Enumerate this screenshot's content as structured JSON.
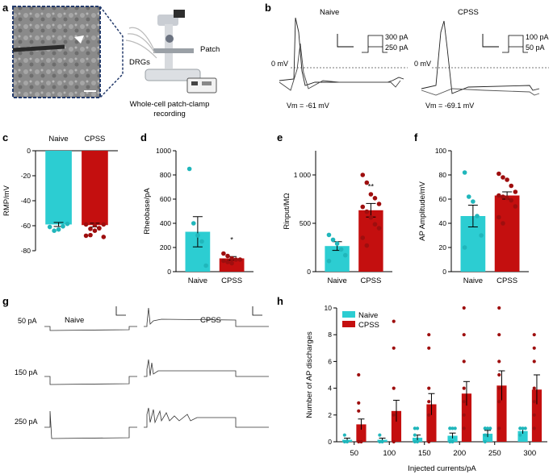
{
  "colors": {
    "naive": "#2ccdd2",
    "cpss": "#c40f0f",
    "naive_dot": "#20b6bb",
    "cpss_dot": "#9e0e0e",
    "frame": "#233a6b"
  },
  "panel_labels": {
    "a": "a",
    "b": "b",
    "c": "c",
    "d": "d",
    "e": "e",
    "f": "f",
    "g": "g",
    "h": "h"
  },
  "panel_a": {
    "drgs": "DRGs",
    "patch": "Patch",
    "caption_line1": "Whole-cell patch-clamp",
    "caption_line2": "recording"
  },
  "panel_b": {
    "naive": {
      "title": "Naive",
      "zero": "0 mV",
      "vm": "Vm = -61 mV",
      "step_hi": "300 pA",
      "step_lo": "250 pA"
    },
    "cpss": {
      "title": "CPSS",
      "zero": "0 mV",
      "vm": "Vm = -69.1 mV",
      "step_hi": "100 pA",
      "step_lo": "50 pA"
    }
  },
  "panel_g": {
    "naive": "Naive",
    "cpss": "CPSS",
    "rows": [
      {
        "label": "50 pA"
      },
      {
        "label": "150 pA"
      },
      {
        "label": "250 pA"
      }
    ]
  },
  "chart_data": [
    {
      "id": "c",
      "type": "bar",
      "ylabel": "RMP/mV",
      "categories": [
        "Naive",
        "CPSS"
      ],
      "values": [
        -59,
        -59.5
      ],
      "errors": [
        1.6,
        1.5
      ],
      "ylim": [
        -80,
        0
      ],
      "yticks": [
        0,
        -20,
        -40,
        -60,
        -80
      ],
      "ytick_labels": [
        "0",
        "-20",
        "-40",
        "-60",
        "-80"
      ],
      "points": [
        [
          -61,
          -64,
          -63,
          -60.5,
          -58.5
        ],
        [
          -59,
          -62.5,
          -59.5,
          -62,
          -69,
          -68,
          -67.5,
          -64,
          -62,
          -59
        ]
      ],
      "sig": ""
    },
    {
      "id": "d",
      "type": "bar",
      "ylabel": "Rheobase/pA",
      "categories": [
        "Naive",
        "CPSS"
      ],
      "values": [
        330,
        110
      ],
      "errors": [
        125,
        15
      ],
      "ylim": [
        0,
        1000
      ],
      "yticks": [
        0,
        200,
        400,
        600,
        800,
        1000
      ],
      "ytick_labels": [
        "0",
        "200",
        "400",
        "600",
        "800",
        "1000"
      ],
      "points": [
        [
          850,
          400,
          300,
          250,
          50
        ],
        [
          150,
          130,
          110,
          100,
          100,
          90,
          80,
          70
        ]
      ],
      "sig": "*"
    },
    {
      "id": "e",
      "type": "bar",
      "ylabel": "Rinput/MΩ",
      "categories": [
        "Naive",
        "CPSS"
      ],
      "values": [
        265,
        635
      ],
      "errors": [
        45,
        70
      ],
      "ylim": [
        0,
        1250
      ],
      "yticks": [
        0,
        500,
        1000
      ],
      "ytick_labels": [
        "0",
        "500",
        "1 000"
      ],
      "points": [
        [
          380,
          330,
          290,
          230,
          170,
          110
        ],
        [
          1000,
          920,
          800,
          760,
          700,
          670,
          620,
          560,
          490,
          450,
          350,
          270
        ]
      ],
      "sig": "**"
    },
    {
      "id": "f",
      "type": "bar",
      "ylabel": "AP Amplitude/mV",
      "categories": [
        "Naive",
        "CPSS"
      ],
      "values": [
        46,
        63
      ],
      "errors": [
        9,
        3
      ],
      "ylim": [
        0,
        100
      ],
      "yticks": [
        0,
        20,
        40,
        60,
        80,
        100
      ],
      "ytick_labels": [
        "0",
        "20",
        "40",
        "60",
        "80",
        "100"
      ],
      "points": [
        [
          82,
          62,
          58,
          46,
          30,
          20
        ],
        [
          81,
          78,
          76,
          71,
          66,
          63,
          62,
          61,
          59,
          54,
          45,
          40
        ]
      ],
      "sig": ""
    },
    {
      "id": "h",
      "type": "bar",
      "xlabel": "Injected currents/pA",
      "ylabel": "Number of AP discharges",
      "categories": [
        "50",
        "100",
        "150",
        "200",
        "250",
        "300"
      ],
      "series": [
        {
          "name": "Naive",
          "values": [
            0.15,
            0.15,
            0.3,
            0.45,
            0.6,
            0.8
          ],
          "errors": [
            0.12,
            0.12,
            0.2,
            0.2,
            0.25,
            0.2
          ]
        },
        {
          "name": "CPSS",
          "values": [
            1.3,
            2.3,
            2.8,
            3.6,
            4.2,
            3.9
          ],
          "errors": [
            0.4,
            0.8,
            0.8,
            0.9,
            1.1,
            1.1
          ]
        }
      ],
      "points": {
        "Naive": [
          [
            0,
            0,
            0.5
          ],
          [
            0,
            0,
            0.5
          ],
          [
            0,
            0,
            0.5,
            1,
            1
          ],
          [
            0,
            0,
            1,
            1,
            1,
            1
          ],
          [
            0,
            0.5,
            1,
            1,
            1,
            1
          ],
          [
            0.5,
            1,
            1,
            1,
            1
          ]
        ],
        "CPSS": [
          [
            0,
            0,
            2.3,
            2.9,
            5
          ],
          [
            0,
            2,
            4,
            7,
            9
          ],
          [
            0,
            2,
            3,
            4,
            7,
            8
          ],
          [
            1,
            2,
            3,
            4,
            6,
            8,
            10
          ],
          [
            1,
            3,
            4,
            5,
            6,
            8,
            10
          ],
          [
            1,
            2,
            3,
            4,
            6,
            7,
            8
          ]
        ]
      },
      "ylim": [
        0,
        10
      ],
      "yticks": [
        0,
        2,
        4,
        6,
        8,
        10
      ],
      "ytick_labels": [
        "0",
        "2",
        "4",
        "6",
        "8",
        "10"
      ],
      "legend": [
        "Naive",
        "CPSS"
      ]
    }
  ]
}
